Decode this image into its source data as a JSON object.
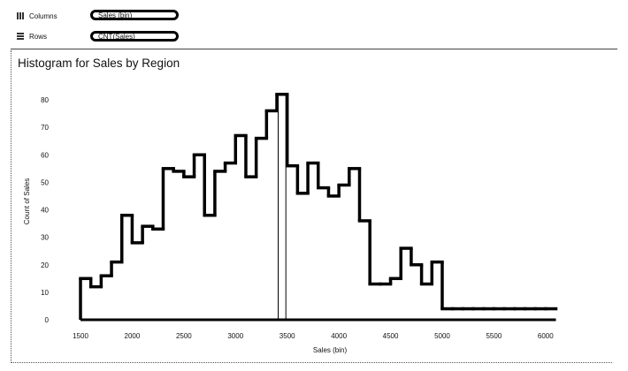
{
  "shelves": {
    "columns": {
      "label": "Columns",
      "pill": "Sales (bin)"
    },
    "rows": {
      "label": "Rows",
      "pill": "CNT(Sales)"
    }
  },
  "chart_data": {
    "type": "bar",
    "title": "Histogram for Sales by Region",
    "xlabel": "Sales (bin)",
    "ylabel": "Count of Sales",
    "xlim": [
      1500,
      6100
    ],
    "ylim": [
      0,
      80
    ],
    "xticks": [
      "1500",
      "2000",
      "2500",
      "3000",
      "3500",
      "4000",
      "4500",
      "5000",
      "5500",
      "6000"
    ],
    "yticks": [
      "0",
      "10",
      "20",
      "30",
      "40",
      "50",
      "60",
      "70",
      "80"
    ],
    "bin_width": 100,
    "bin_starts": [
      1500,
      1600,
      1700,
      1800,
      1900,
      2000,
      2100,
      2200,
      2300,
      2400,
      2500,
      2600,
      2700,
      2800,
      2900,
      3000,
      3100,
      3200,
      3300,
      3400,
      3500,
      3600,
      3700,
      3800,
      3900,
      4000,
      4100,
      4200,
      4300,
      4400,
      4500,
      4600,
      4700,
      4800,
      4900,
      5000,
      5100,
      5200,
      5300,
      5400,
      5500,
      5600,
      5700,
      5800,
      5900,
      6000
    ],
    "values": [
      15,
      12,
      16,
      21,
      38,
      28,
      34,
      33,
      55,
      54,
      52,
      60,
      38,
      54,
      57,
      67,
      52,
      66,
      76,
      82,
      56,
      46,
      57,
      48,
      45,
      49,
      55,
      36,
      13,
      13,
      15,
      26,
      20,
      13,
      21,
      4,
      4,
      4,
      4,
      4,
      4,
      4,
      4,
      4,
      4,
      4
    ],
    "highlighted_bin": 3400,
    "grid": false
  }
}
